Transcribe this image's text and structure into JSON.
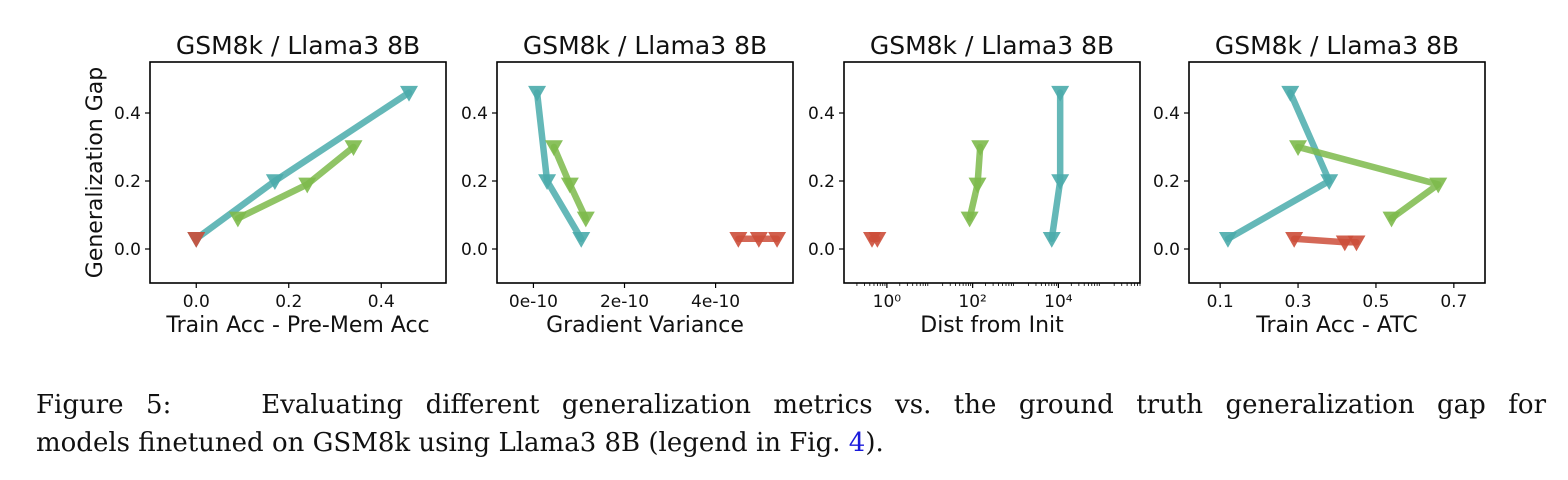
{
  "chart_data": [
    {
      "type": "line",
      "title": "GSM8k / Llama3 8B",
      "xlabel": "Train Acc - Pre-Mem Acc",
      "ylabel": "Generalization Gap",
      "xscale": "linear",
      "xlim": [
        -0.1,
        0.54
      ],
      "ylim": [
        -0.1,
        0.55
      ],
      "xticks": [
        0.0,
        0.2,
        0.4
      ],
      "xticklabels": [
        "0.0",
        "0.2",
        "0.4"
      ],
      "yticks": [
        0.0,
        0.2,
        0.4
      ],
      "yticklabels": [
        "0.0",
        "0.2",
        "0.4"
      ],
      "marker": "triangle-down",
      "series": [
        {
          "color": "#4aabab",
          "points": [
            [
              0.0,
              0.03
            ],
            [
              0.17,
              0.2
            ],
            [
              0.46,
              0.46
            ]
          ]
        },
        {
          "color": "#7dba4b",
          "points": [
            [
              0.09,
              0.09
            ],
            [
              0.24,
              0.19
            ],
            [
              0.34,
              0.3
            ]
          ]
        },
        {
          "color": "#cc4e3a",
          "points": [
            [
              0.0,
              0.03
            ]
          ]
        }
      ]
    },
    {
      "type": "line",
      "title": "GSM8k / Llama3 8B",
      "xlabel": "Gradient Variance",
      "ylabel": "",
      "xscale": "linear",
      "xlim": [
        -8e-11,
        5.7e-10
      ],
      "ylim": [
        -0.1,
        0.55
      ],
      "xticks": [
        0,
        2e-10,
        4e-10
      ],
      "xticklabels": [
        "0e-10",
        "2e-10",
        "4e-10"
      ],
      "yticks": [
        0.0,
        0.2,
        0.4
      ],
      "yticklabels": [
        "0.0",
        "0.2",
        "0.4"
      ],
      "marker": "triangle-down",
      "series": [
        {
          "color": "#4aabab",
          "points": [
            [
              8e-12,
              0.46
            ],
            [
              3e-11,
              0.2
            ],
            [
              1.05e-10,
              0.03
            ]
          ]
        },
        {
          "color": "#7dba4b",
          "points": [
            [
              4.5e-11,
              0.3
            ],
            [
              8e-11,
              0.19
            ],
            [
              1.15e-10,
              0.09
            ]
          ]
        },
        {
          "color": "#cc4e3a",
          "points": [
            [
              4.5e-10,
              0.03
            ],
            [
              4.95e-10,
              0.03
            ],
            [
              5.35e-10,
              0.03
            ]
          ]
        }
      ]
    },
    {
      "type": "line",
      "title": "GSM8k / Llama3 8B",
      "xlabel": "Dist from Init",
      "ylabel": "",
      "xscale": "log",
      "xlim": [
        0.1,
        800000
      ],
      "ylim": [
        -0.1,
        0.55
      ],
      "xticks": [
        1,
        100,
        10000
      ],
      "xticklabels": [
        "10⁰",
        "10²",
        "10⁴"
      ],
      "yticks": [
        0.0,
        0.2,
        0.4
      ],
      "yticklabels": [
        "0.0",
        "0.2",
        "0.4"
      ],
      "marker": "triangle-down",
      "series": [
        {
          "color": "#4aabab",
          "points": [
            [
              11000,
              0.46
            ],
            [
              11000,
              0.2
            ],
            [
              7000,
              0.03
            ]
          ]
        },
        {
          "color": "#7dba4b",
          "points": [
            [
              150,
              0.3
            ],
            [
              130,
              0.19
            ],
            [
              85,
              0.09
            ]
          ]
        },
        {
          "color": "#cc4e3a",
          "points": [
            [
              0.45,
              0.03
            ],
            [
              0.6,
              0.03
            ]
          ]
        }
      ]
    },
    {
      "type": "line",
      "title": "GSM8k / Llama3 8B",
      "xlabel": "Train Acc - ATC",
      "ylabel": "",
      "xscale": "linear",
      "xlim": [
        0.02,
        0.78
      ],
      "ylim": [
        -0.1,
        0.55
      ],
      "xticks": [
        0.1,
        0.3,
        0.5,
        0.7
      ],
      "xticklabels": [
        "0.1",
        "0.3",
        "0.5",
        "0.7"
      ],
      "yticks": [
        0.0,
        0.2,
        0.4
      ],
      "yticklabels": [
        "0.0",
        "0.2",
        "0.4"
      ],
      "marker": "triangle-down",
      "series": [
        {
          "color": "#4aabab",
          "points": [
            [
              0.28,
              0.46
            ],
            [
              0.38,
              0.2
            ],
            [
              0.12,
              0.03
            ]
          ]
        },
        {
          "color": "#7dba4b",
          "points": [
            [
              0.3,
              0.3
            ],
            [
              0.66,
              0.19
            ],
            [
              0.54,
              0.09
            ]
          ]
        },
        {
          "color": "#cc4e3a",
          "points": [
            [
              0.29,
              0.03
            ],
            [
              0.42,
              0.02
            ],
            [
              0.45,
              0.02
            ]
          ]
        }
      ]
    }
  ],
  "caption": {
    "label": "Figure 5:",
    "line1": "Evaluating different generalization metrics vs.  the ground truth generalization gap for",
    "line2_before": "models finetuned on GSM8k using Llama3 8B (legend in Fig. ",
    "line2_ref": "4",
    "line2_after": ")."
  }
}
